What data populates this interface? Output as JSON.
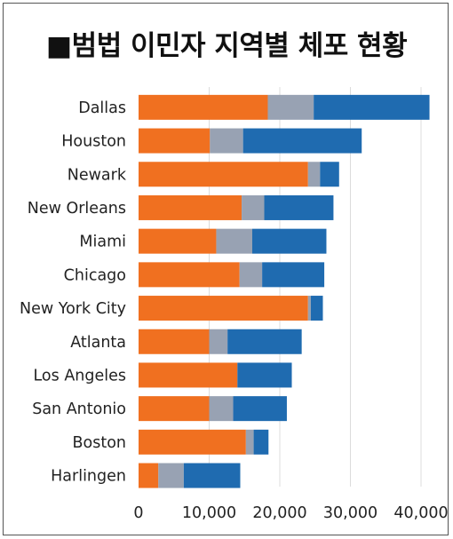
{
  "title": "■범법 이민자 지역별 체포 현황",
  "chart_data": {
    "type": "bar",
    "orientation": "horizontal",
    "stacked": true,
    "categories": [
      "Dallas",
      "Houston",
      "Newark",
      "New Orleans",
      "Miami",
      "Chicago",
      "New York City",
      "Atlanta",
      "Los Angeles",
      "San Antonio",
      "Boston",
      "Harlingen"
    ],
    "series": [
      {
        "color": "#f07020",
        "values": [
          18300,
          10100,
          24000,
          14600,
          11000,
          14300,
          24000,
          10000,
          14000,
          10000,
          15200,
          2800
        ]
      },
      {
        "color": "#98a2b3",
        "values": [
          6500,
          4700,
          1700,
          3200,
          5100,
          3200,
          400,
          2600,
          0,
          3400,
          1100,
          3600
        ]
      },
      {
        "color": "#1f6bb0",
        "values": [
          16400,
          16800,
          2700,
          9800,
          10500,
          8800,
          1700,
          10500,
          7700,
          7600,
          2100,
          8000
        ]
      }
    ],
    "xlim": [
      0,
      42000
    ],
    "xticks": [
      0,
      10000,
      20000,
      30000,
      40000
    ],
    "xtick_labels": [
      "0",
      "10,000",
      "20,000",
      "30,000",
      "40,000"
    ]
  }
}
